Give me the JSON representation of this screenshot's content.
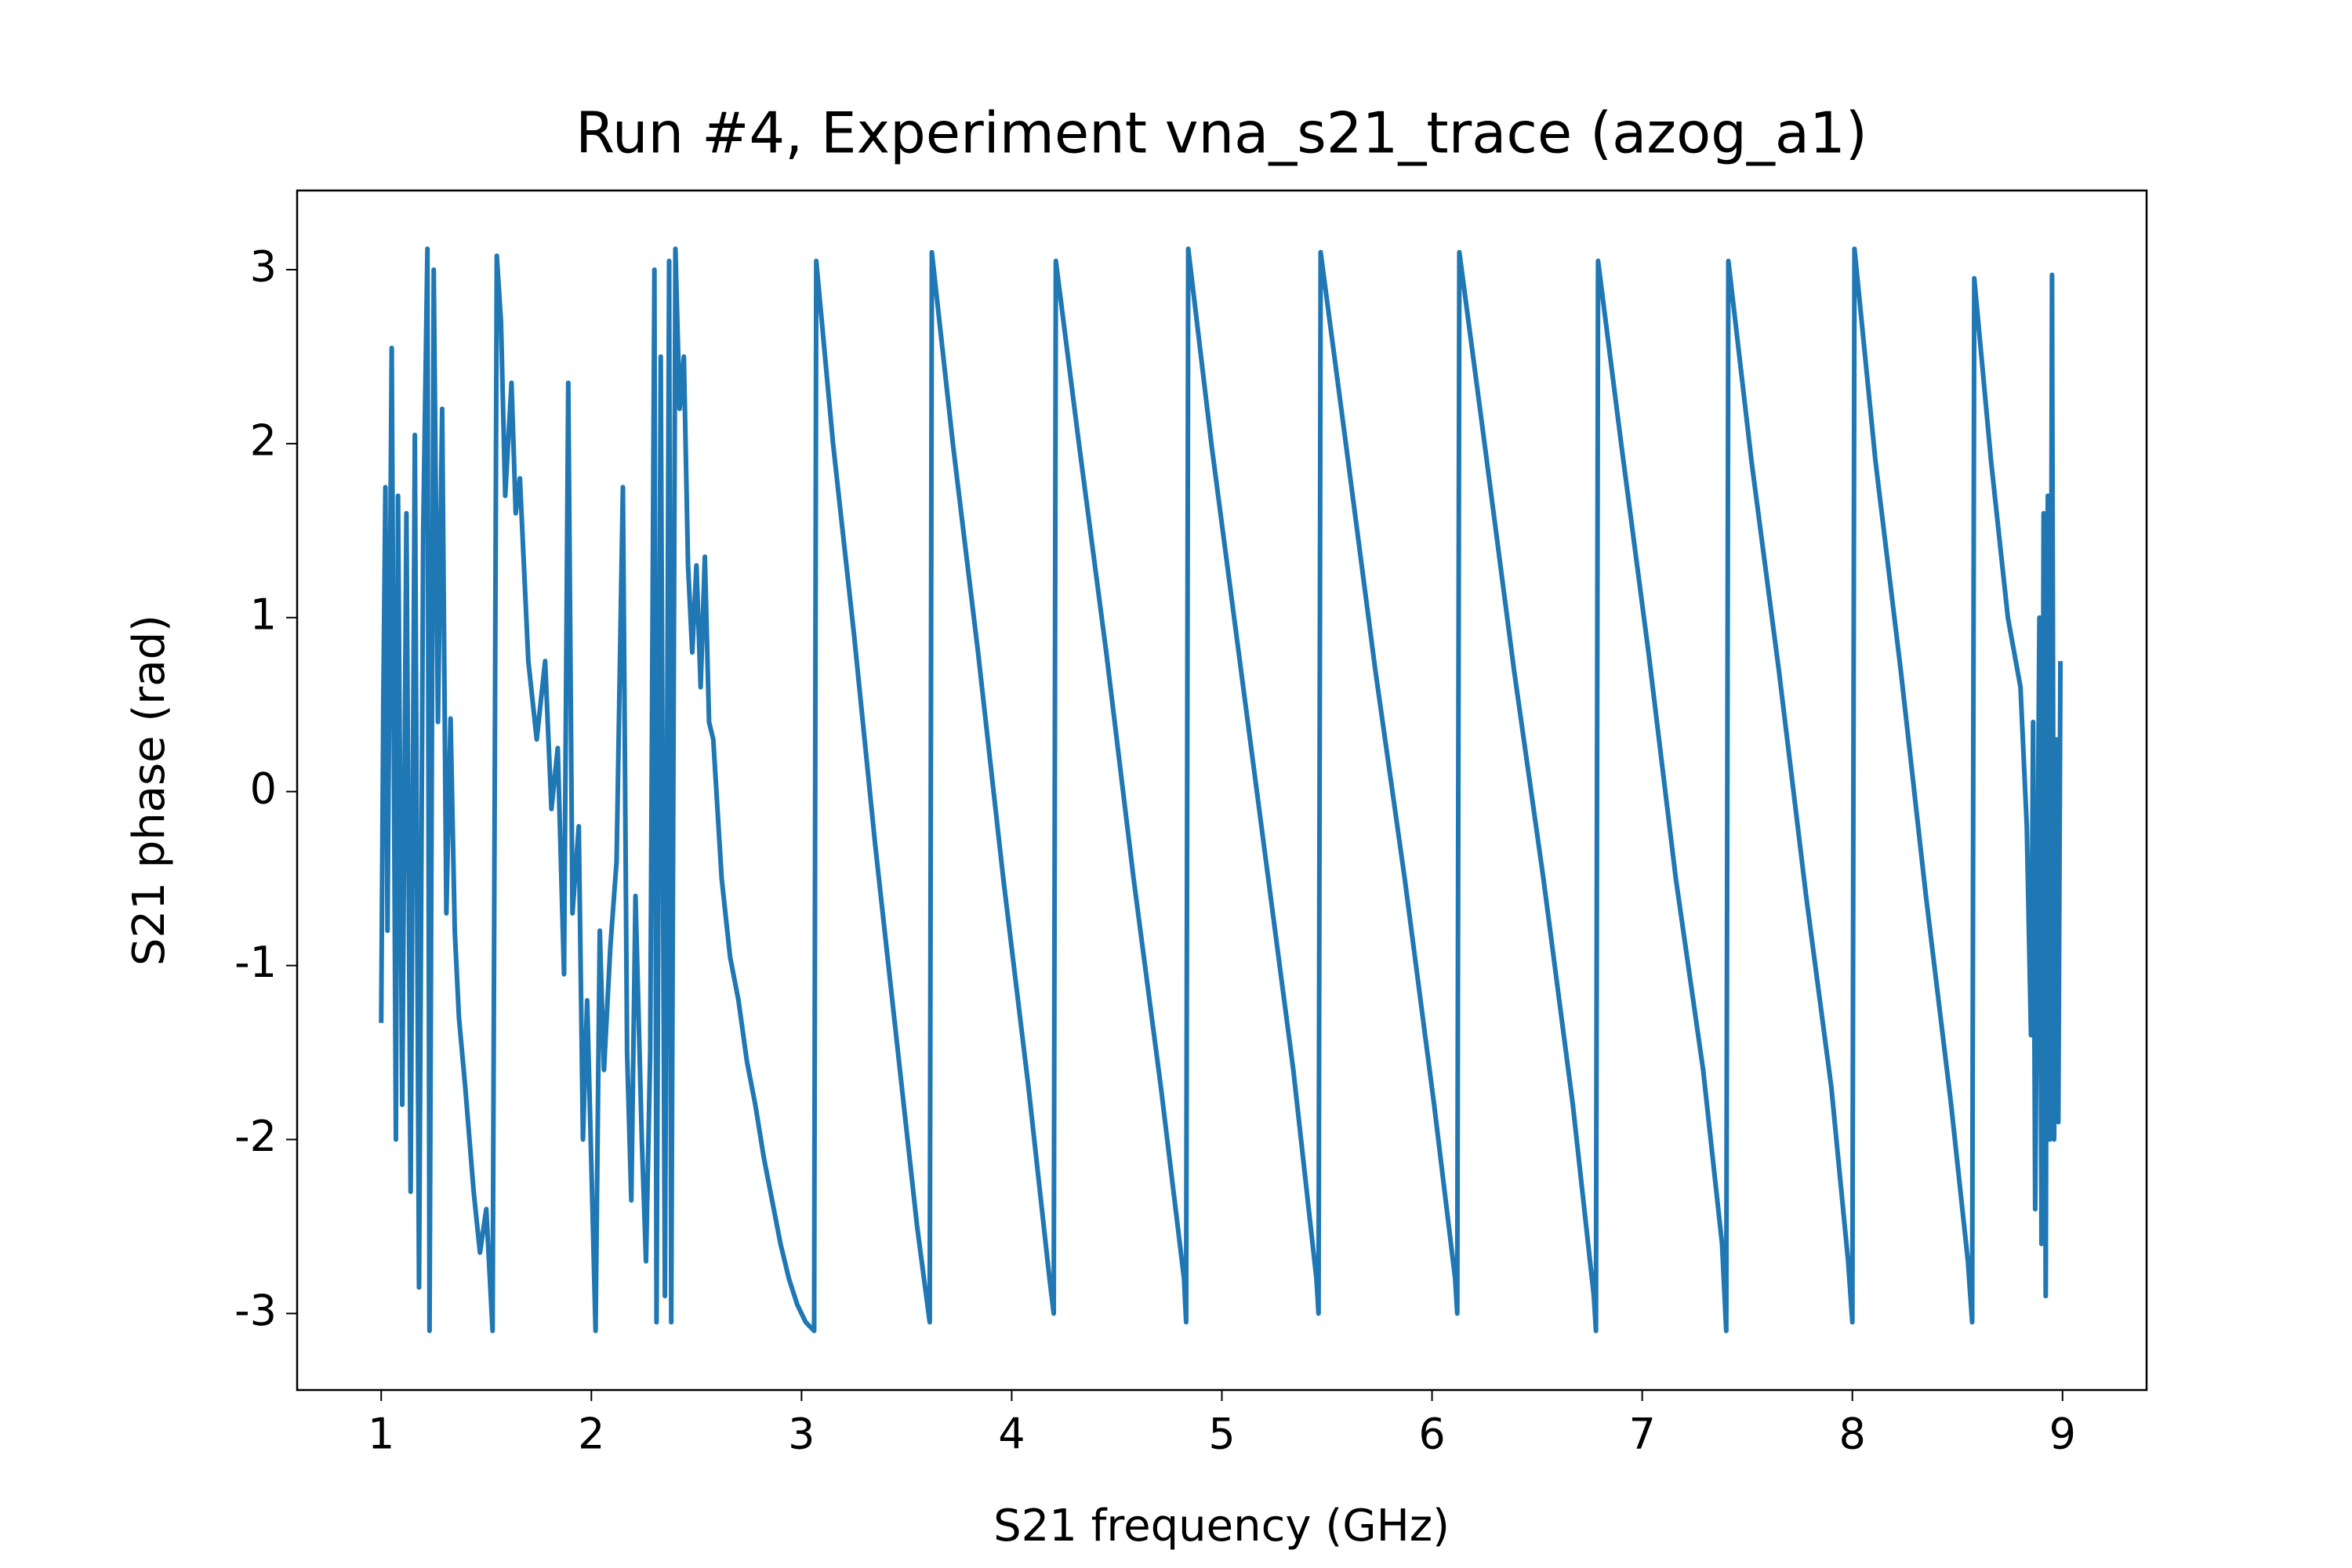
{
  "chart_data": {
    "type": "line",
    "title": "Run #4, Experiment vna_s21_trace (azog_a1)",
    "x_label": "S21 frequency (GHz)",
    "y_label": "S21 phase (rad)",
    "xlim": [
      0.6,
      9.4
    ],
    "ylim": [
      -3.44,
      3.455
    ],
    "xticks": [
      1,
      2,
      3,
      4,
      5,
      6,
      7,
      8,
      9
    ],
    "yticks": [
      -3,
      -2,
      -1,
      0,
      1,
      2,
      3
    ],
    "grid": false,
    "x": [
      1.0,
      1.01,
      1.02,
      1.03,
      1.05,
      1.07,
      1.08,
      1.1,
      1.12,
      1.14,
      1.16,
      1.18,
      1.2,
      1.22,
      1.23,
      1.25,
      1.27,
      1.29,
      1.31,
      1.33,
      1.35,
      1.37,
      1.4,
      1.44,
      1.47,
      1.5,
      1.53,
      1.55,
      1.57,
      1.59,
      1.62,
      1.64,
      1.66,
      1.7,
      1.74,
      1.78,
      1.81,
      1.84,
      1.87,
      1.89,
      1.91,
      1.94,
      1.96,
      1.98,
      2.02,
      2.04,
      2.06,
      2.09,
      2.12,
      2.15,
      2.17,
      2.19,
      2.21,
      2.24,
      2.26,
      2.28,
      2.3,
      2.31,
      2.33,
      2.35,
      2.37,
      2.38,
      2.4,
      2.42,
      2.44,
      2.46,
      2.48,
      2.5,
      2.52,
      2.54,
      2.56,
      2.58,
      2.62,
      2.66,
      2.7,
      2.74,
      2.78,
      2.82,
      2.86,
      2.9,
      2.94,
      2.98,
      3.02,
      3.06,
      3.07,
      3.15,
      3.25,
      3.35,
      3.45,
      3.55,
      3.61,
      3.62,
      3.72,
      3.84,
      3.96,
      4.08,
      4.18,
      4.2,
      4.21,
      4.32,
      4.45,
      4.58,
      4.71,
      4.82,
      4.83,
      4.84,
      4.95,
      5.08,
      5.21,
      5.34,
      5.45,
      5.46,
      5.47,
      5.59,
      5.73,
      5.87,
      6.01,
      6.11,
      6.12,
      6.13,
      6.25,
      6.39,
      6.53,
      6.67,
      6.77,
      6.78,
      6.79,
      6.9,
      7.03,
      7.16,
      7.29,
      7.38,
      7.4,
      7.41,
      7.52,
      7.65,
      7.78,
      7.9,
      7.98,
      8.0,
      8.01,
      8.11,
      8.23,
      8.35,
      8.47,
      8.55,
      8.57,
      8.58,
      8.66,
      8.74,
      8.8,
      8.83,
      8.85,
      8.86,
      8.87,
      8.89,
      8.9,
      8.91,
      8.92,
      8.93,
      8.94,
      8.95,
      8.96,
      8.97,
      8.98,
      8.99
    ],
    "series": [
      {
        "name": "S21 phase",
        "color": "#1f77b4",
        "values": [
          -1.33,
          0.5,
          1.75,
          -0.8,
          2.55,
          -2.0,
          1.7,
          -1.8,
          1.6,
          -2.3,
          2.05,
          -2.85,
          1.5,
          3.12,
          -3.1,
          3.0,
          0.4,
          2.2,
          -0.7,
          0.42,
          -0.8,
          -1.3,
          -1.7,
          -2.3,
          -2.65,
          -2.4,
          -3.1,
          3.08,
          2.7,
          1.7,
          2.35,
          1.6,
          1.8,
          0.75,
          0.3,
          0.75,
          -0.1,
          0.25,
          -1.05,
          2.35,
          -0.7,
          -0.2,
          -2.0,
          -1.2,
          -3.1,
          -0.8,
          -1.6,
          -0.9,
          -0.4,
          1.75,
          -1.5,
          -2.35,
          -0.6,
          -2.0,
          -2.7,
          -1.5,
          3.0,
          -3.05,
          2.5,
          -2.9,
          3.05,
          -3.05,
          3.12,
          2.2,
          2.5,
          1.3,
          0.8,
          1.3,
          0.6,
          1.35,
          0.4,
          0.3,
          -0.5,
          -0.95,
          -1.2,
          -1.55,
          -1.8,
          -2.1,
          -2.35,
          -2.6,
          -2.8,
          -2.95,
          -3.05,
          -3.1,
          3.05,
          2.0,
          0.9,
          -0.3,
          -1.4,
          -2.5,
          -3.05,
          3.1,
          2.0,
          0.8,
          -0.5,
          -1.7,
          -2.8,
          -3.0,
          3.05,
          2.0,
          0.8,
          -0.5,
          -1.7,
          -2.8,
          -3.05,
          3.12,
          2.0,
          0.8,
          -0.4,
          -1.6,
          -2.8,
          -3.0,
          3.1,
          2.0,
          0.7,
          -0.5,
          -1.8,
          -2.8,
          -3.0,
          3.1,
          2.0,
          0.7,
          -0.5,
          -1.8,
          -2.9,
          -3.1,
          3.05,
          2.0,
          0.8,
          -0.5,
          -1.6,
          -2.6,
          -3.1,
          3.05,
          1.9,
          0.7,
          -0.6,
          -1.7,
          -2.7,
          -3.05,
          3.12,
          1.9,
          0.7,
          -0.6,
          -1.8,
          -2.7,
          -3.05,
          2.95,
          1.9,
          1.0,
          0.6,
          -0.2,
          -1.4,
          0.4,
          -2.4,
          1.0,
          -2.6,
          1.6,
          -2.9,
          1.7,
          -2.0,
          2.97,
          -2.0,
          0.3,
          -1.9,
          0.75
        ]
      }
    ]
  }
}
